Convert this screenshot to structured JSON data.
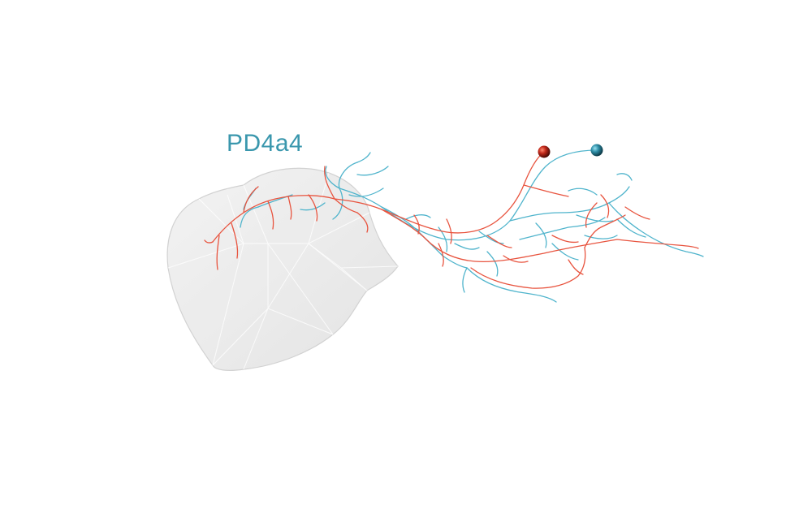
{
  "neuron_name": "PD4a4",
  "colors": {
    "label": "#3a97ad",
    "neuron_a": "#e8543f",
    "neuron_b": "#4fb4cc",
    "soma_a": "#c0281a",
    "soma_b": "#2f8fa8",
    "mesh_fill": "#ededed",
    "mesh_edge": "#d6d6d6"
  }
}
